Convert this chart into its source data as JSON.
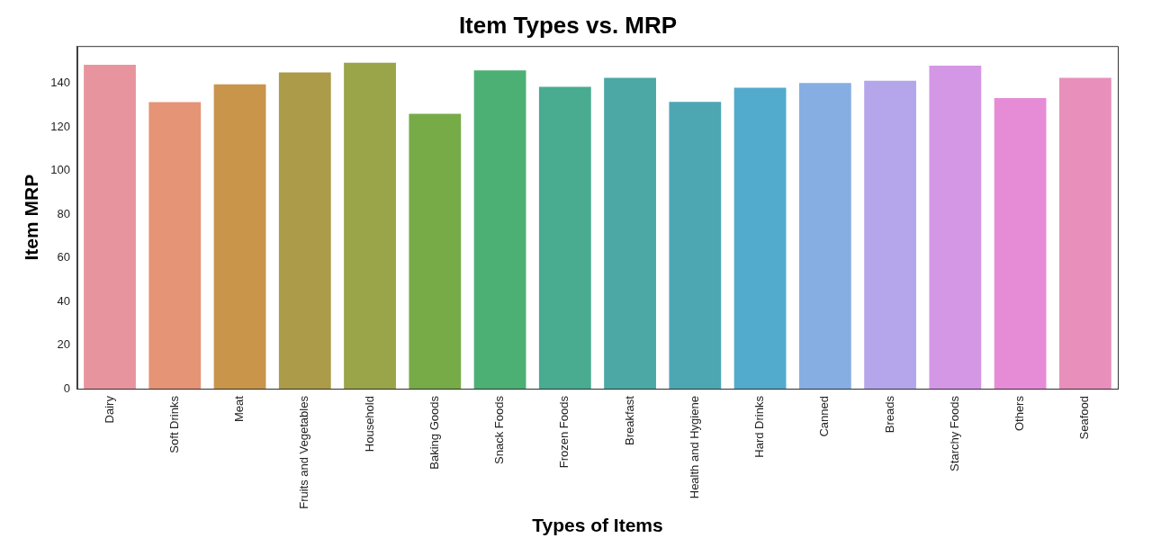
{
  "chart_data": {
    "type": "bar",
    "title": "Item Types vs. MRP",
    "xlabel": "Types of Items",
    "ylabel": "Item MRP",
    "categories": [
      "Dairy",
      "Soft Drinks",
      "Meat",
      "Fruits and Vegetables",
      "Household",
      "Baking Goods",
      "Snack Foods",
      "Frozen Foods",
      "Breakfast",
      "Health and Hygiene",
      "Hard Drinks",
      "Canned",
      "Breads",
      "Starchy Foods",
      "Others",
      "Seafood"
    ],
    "values": [
      148.4,
      131.3,
      139.5,
      144.9,
      149.4,
      126.0,
      145.9,
      138.3,
      142.4,
      131.4,
      137.9,
      140.1,
      141.1,
      148.0,
      133.2,
      142.4
    ],
    "colors": [
      "#e8949f",
      "#e59476",
      "#c9954b",
      "#ac9b48",
      "#9aa448",
      "#77ab48",
      "#4caf73",
      "#49ab90",
      "#4ba8a4",
      "#4da7b3",
      "#52abcd",
      "#87aee2",
      "#b5a6ec",
      "#d497e6",
      "#e68cd6",
      "#e890bb"
    ],
    "ylim": [
      0,
      157
    ],
    "yticks": [
      0,
      20,
      40,
      60,
      80,
      100,
      120,
      140
    ],
    "grid": false,
    "legend": false
  }
}
